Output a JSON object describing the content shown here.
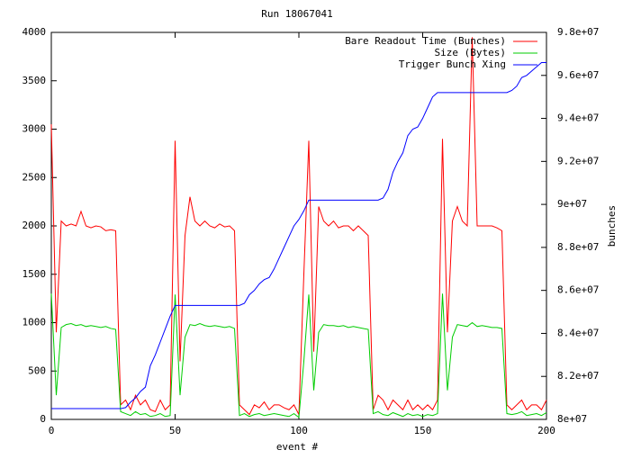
{
  "chart_data": {
    "type": "line",
    "title": "Run 18067041",
    "xlabel": "event #",
    "y2label": "bunches",
    "x": [
      0,
      2,
      4,
      6,
      8,
      10,
      12,
      14,
      16,
      18,
      20,
      22,
      24,
      26,
      28,
      30,
      32,
      34,
      36,
      38,
      40,
      42,
      44,
      46,
      48,
      50,
      52,
      54,
      56,
      58,
      60,
      62,
      64,
      66,
      68,
      70,
      72,
      74,
      76,
      78,
      80,
      82,
      84,
      86,
      88,
      90,
      92,
      94,
      96,
      98,
      100,
      102,
      104,
      106,
      108,
      110,
      112,
      114,
      116,
      118,
      120,
      122,
      124,
      126,
      128,
      130,
      132,
      134,
      136,
      138,
      140,
      142,
      144,
      146,
      148,
      150,
      152,
      154,
      156,
      158,
      160,
      162,
      164,
      166,
      168,
      170,
      172,
      174,
      176,
      178,
      180,
      182,
      184,
      186,
      188,
      190,
      192,
      194,
      196,
      198,
      200
    ],
    "series": [
      {
        "name": "Bare Readout Time (Bunches)",
        "color": "#ff0000",
        "values": [
          3050,
          900,
          2050,
          2000,
          2020,
          2000,
          2150,
          2000,
          1980,
          2000,
          1990,
          1950,
          1960,
          1950,
          150,
          200,
          100,
          250,
          150,
          200,
          100,
          80,
          200,
          100,
          150,
          2880,
          600,
          1900,
          2300,
          2050,
          2000,
          2050,
          2000,
          1980,
          2020,
          1990,
          2000,
          1950,
          150,
          100,
          50,
          150,
          120,
          180,
          100,
          150,
          150,
          120,
          100,
          150,
          50,
          1500,
          2880,
          700,
          2200,
          2050,
          2000,
          2050,
          1980,
          2000,
          2000,
          1950,
          2000,
          1950,
          1900,
          100,
          250,
          200,
          100,
          200,
          150,
          100,
          200,
          100,
          150,
          100,
          150,
          100,
          200,
          2900,
          900,
          2050,
          2200,
          2050,
          2000,
          3950,
          2000,
          2000,
          2000,
          2000,
          1980,
          1950,
          150,
          100,
          150,
          200,
          100,
          150,
          150,
          100,
          200
        ]
      },
      {
        "name": "Size (Bytes)",
        "color": "#00cc00",
        "values": [
          1300,
          250,
          950,
          980,
          990,
          970,
          980,
          960,
          970,
          960,
          950,
          960,
          940,
          930,
          80,
          60,
          40,
          80,
          50,
          60,
          30,
          40,
          60,
          30,
          40,
          1290,
          250,
          850,
          980,
          970,
          990,
          970,
          960,
          970,
          960,
          950,
          960,
          940,
          40,
          60,
          30,
          50,
          60,
          40,
          50,
          60,
          50,
          40,
          30,
          60,
          20,
          600,
          1290,
          300,
          900,
          980,
          970,
          970,
          960,
          970,
          950,
          960,
          950,
          940,
          930,
          60,
          80,
          50,
          40,
          70,
          50,
          30,
          60,
          40,
          50,
          30,
          50,
          40,
          60,
          1300,
          300,
          850,
          980,
          970,
          960,
          1000,
          960,
          970,
          960,
          950,
          950,
          940,
          60,
          50,
          60,
          80,
          40,
          50,
          60,
          40,
          70
        ]
      },
      {
        "name": "Trigger Bunch Xing",
        "color": "#0000ff",
        "axis": "y2",
        "values": [
          80500000,
          80500000,
          80500000,
          80500000,
          80500000,
          80500000,
          80500000,
          80500000,
          80500000,
          80500000,
          80500000,
          80500000,
          80500000,
          80500000,
          80500000,
          80550000,
          80800000,
          81000000,
          81300000,
          81500000,
          82500000,
          83000000,
          83600000,
          84200000,
          84800000,
          85300000,
          85300000,
          85300000,
          85300000,
          85300000,
          85300000,
          85300000,
          85300000,
          85300000,
          85300000,
          85300000,
          85300000,
          85300000,
          85300000,
          85400000,
          85800000,
          86000000,
          86300000,
          86500000,
          86600000,
          87000000,
          87500000,
          88000000,
          88500000,
          89000000,
          89300000,
          89700000,
          90200000,
          90200000,
          90200000,
          90200000,
          90200000,
          90200000,
          90200000,
          90200000,
          90200000,
          90200000,
          90200000,
          90200000,
          90200000,
          90200000,
          90200000,
          90300000,
          90700000,
          91500000,
          92000000,
          92400000,
          93200000,
          93500000,
          93600000,
          94000000,
          94500000,
          95000000,
          95200000,
          95200000,
          95200000,
          95200000,
          95200000,
          95200000,
          95200000,
          95200000,
          95200000,
          95200000,
          95200000,
          95200000,
          95200000,
          95200000,
          95200000,
          95300000,
          95500000,
          95900000,
          96000000,
          96200000,
          96400000,
          96600000,
          96600000
        ]
      }
    ],
    "xlim": [
      0,
      200
    ],
    "xticks": [
      0,
      50,
      100,
      150,
      200
    ],
    "ylim": [
      0,
      4000
    ],
    "yticks": [
      0,
      500,
      1000,
      1500,
      2000,
      2500,
      3000,
      3500,
      4000
    ],
    "y2lim": [
      80000000,
      98000000
    ],
    "y2ticks": [
      {
        "value": 80000000,
        "label": "8e+07"
      },
      {
        "value": 82000000,
        "label": "8.2e+07"
      },
      {
        "value": 84000000,
        "label": "8.4e+07"
      },
      {
        "value": 86000000,
        "label": "8.6e+07"
      },
      {
        "value": 88000000,
        "label": "8.8e+07"
      },
      {
        "value": 90000000,
        "label": "9e+07"
      },
      {
        "value": 92000000,
        "label": "9.2e+07"
      },
      {
        "value": 94000000,
        "label": "9.4e+07"
      },
      {
        "value": 96000000,
        "label": "9.6e+07"
      },
      {
        "value": 98000000,
        "label": "9.8e+07"
      }
    ],
    "legend": "top-right"
  }
}
